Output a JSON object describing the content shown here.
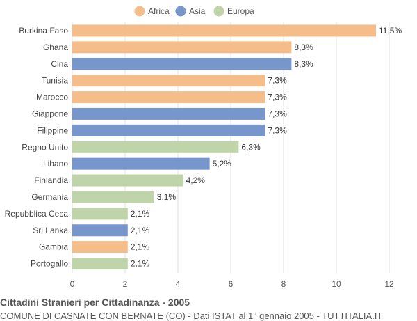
{
  "chart_data": {
    "type": "bar",
    "orientation": "horizontal",
    "title": "Cittadini Stranieri per Cittadinanza - 2005",
    "subtitle": "COMUNE DI CASNATE CON BERNATE (CO) - Dati ISTAT al 1° gennaio 2005 - TUTTITALIA.IT",
    "legend": {
      "placement": "top-center",
      "entries": [
        {
          "name": "Africa",
          "color": "#f5bd8a"
        },
        {
          "name": "Asia",
          "color": "#7696cc"
        },
        {
          "name": "Europa",
          "color": "#bfd4a8"
        }
      ]
    },
    "categories": [
      "Burkina Faso",
      "Ghana",
      "Cina",
      "Tunisia",
      "Marocco",
      "Giappone",
      "Filippine",
      "Regno Unito",
      "Libano",
      "Finlandia",
      "Germania",
      "Repubblica Ceca",
      "Sri Lanka",
      "Gambia",
      "Portogallo"
    ],
    "values": [
      11.5,
      8.3,
      8.3,
      7.3,
      7.3,
      7.3,
      7.3,
      6.3,
      5.2,
      4.2,
      3.1,
      2.1,
      2.1,
      2.1,
      2.1
    ],
    "value_labels": [
      "11,5%",
      "8,3%",
      "8,3%",
      "7,3%",
      "7,3%",
      "7,3%",
      "7,3%",
      "6,3%",
      "5,2%",
      "4,2%",
      "3,1%",
      "2,1%",
      "2,1%",
      "2,1%",
      "2,1%"
    ],
    "groups": [
      "Africa",
      "Africa",
      "Asia",
      "Africa",
      "Africa",
      "Asia",
      "Asia",
      "Europa",
      "Asia",
      "Europa",
      "Europa",
      "Europa",
      "Asia",
      "Africa",
      "Europa"
    ],
    "xlim": [
      0,
      12
    ],
    "xticks": [
      0,
      2,
      4,
      6,
      8,
      10,
      12
    ],
    "grid": true
  }
}
